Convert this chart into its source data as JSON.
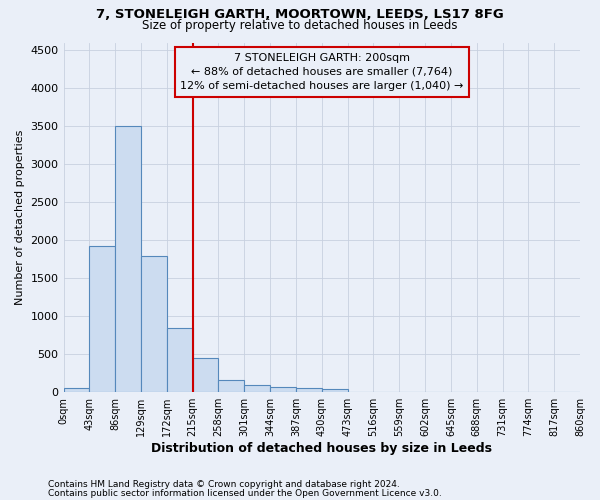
{
  "title1": "7, STONELEIGH GARTH, MOORTOWN, LEEDS, LS17 8FG",
  "title2": "Size of property relative to detached houses in Leeds",
  "xlabel": "Distribution of detached houses by size in Leeds",
  "ylabel": "Number of detached properties",
  "footnote1": "Contains HM Land Registry data © Crown copyright and database right 2024.",
  "footnote2": "Contains public sector information licensed under the Open Government Licence v3.0.",
  "bin_labels": [
    "0sqm",
    "43sqm",
    "86sqm",
    "129sqm",
    "172sqm",
    "215sqm",
    "258sqm",
    "301sqm",
    "344sqm",
    "387sqm",
    "430sqm",
    "473sqm",
    "516sqm",
    "559sqm",
    "602sqm",
    "645sqm",
    "688sqm",
    "731sqm",
    "774sqm",
    "817sqm",
    "860sqm"
  ],
  "bar_values": [
    50,
    1920,
    3500,
    1790,
    840,
    450,
    160,
    100,
    65,
    50,
    40,
    0,
    0,
    0,
    0,
    0,
    0,
    0,
    0,
    0
  ],
  "bar_color": "#ccdcf0",
  "bar_edge_color": "#5588bb",
  "ylim": [
    0,
    4600
  ],
  "yticks": [
    0,
    500,
    1000,
    1500,
    2000,
    2500,
    3000,
    3500,
    4000,
    4500
  ],
  "vline_x": 5,
  "vline_color": "#cc0000",
  "annotation_text": "7 STONELEIGH GARTH: 200sqm\n← 88% of detached houses are smaller (7,764)\n12% of semi-detached houses are larger (1,040) →",
  "annotation_box_color": "#cc0000",
  "bg_color": "#eaeff8",
  "grid_color": "#c8d0e0"
}
